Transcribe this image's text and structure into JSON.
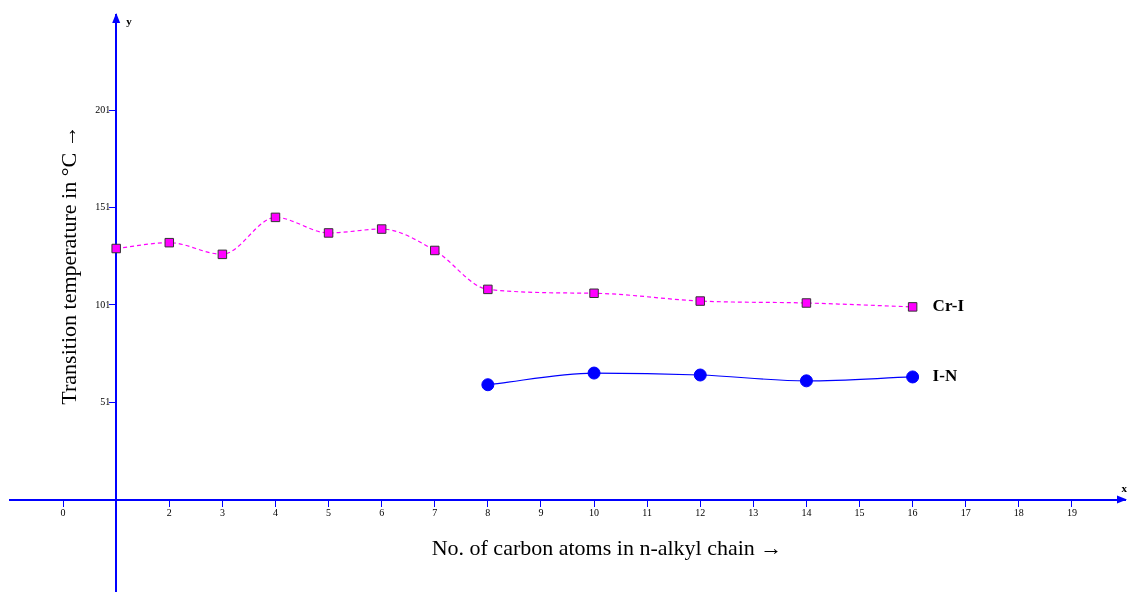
{
  "chart_data": {
    "type": "line",
    "xlabel": "No. of carbon atoms in n-alkyl chain →",
    "ylabel": "Transition temperature in °C →",
    "annotations": [
      "x",
      "y"
    ],
    "x": [
      1,
      2,
      3,
      4,
      5,
      6,
      7,
      8,
      10,
      12,
      14,
      16
    ],
    "series": [
      {
        "name": "Cr-I",
        "color": "#ff00ff",
        "marker": "square",
        "line_style": "dashed",
        "values": [
          130,
          133,
          127,
          146,
          138,
          140,
          129,
          109,
          107,
          103,
          102,
          100
        ]
      },
      {
        "name": "I-N",
        "color": "#0000ff",
        "marker": "circle",
        "line_style": "solid",
        "values": [
          null,
          null,
          null,
          null,
          null,
          null,
          null,
          60,
          66,
          65,
          62,
          64
        ]
      }
    ],
    "xlim": [
      -1,
      20
    ],
    "xticks": [
      0,
      2,
      3,
      4,
      5,
      6,
      7,
      8,
      9,
      10,
      11,
      12,
      13,
      14,
      15,
      16,
      17,
      18,
      19
    ],
    "ylim": [
      -46,
      250
    ],
    "yticks": [
      51,
      101,
      151,
      201
    ],
    "grid": false,
    "legend": false
  }
}
